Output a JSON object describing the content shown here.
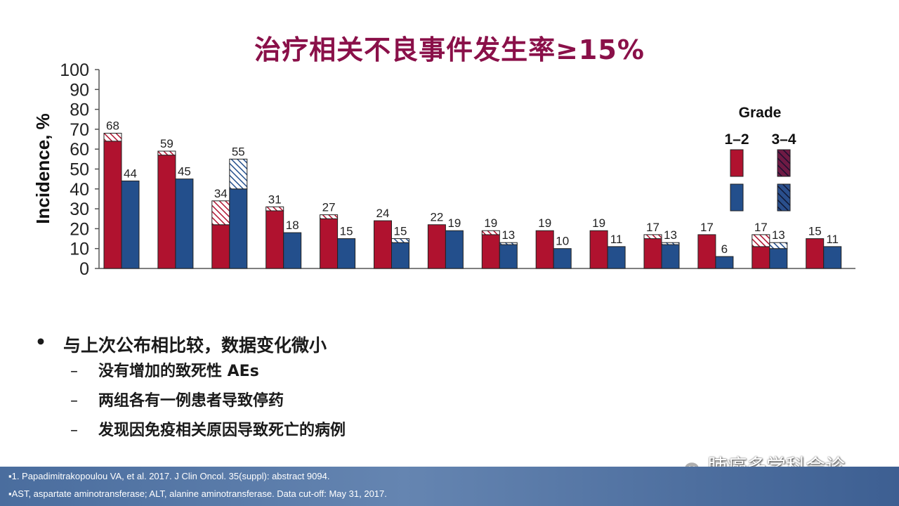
{
  "slide": {
    "title": "治疗相关不良事件发生率≥15%",
    "bullets": [
      {
        "text": "与上次公布相比较，数据变化微小",
        "subs": [
          "没有增加的致死性 AEs",
          "两组各有一例患者导致停药",
          "发现因免疫相关原因导致死亡的病例"
        ]
      }
    ],
    "bullet_marker": "•",
    "sub_marker": "–",
    "footnotes": [
      "▪1. Papadimitrakopoulou VA, et al. 2017. J Clin Oncol. 35(suppl): abstract 9094.",
      "▪AST, aspartate aminotransferase; ALT, alanine aminotransferase. Data cut-off: May 31, 2017."
    ],
    "watermark": "肺癌多学科会诊",
    "colors": {
      "title": "#8a1049",
      "red": "#b0122f",
      "blue": "#234f8c",
      "footer": "#5677a8"
    }
  },
  "chart_data": {
    "type": "bar",
    "stacked": true,
    "ylabel": "Incidence, %",
    "ylim": [
      0,
      100
    ],
    "yticks": [
      0,
      10,
      20,
      30,
      40,
      50,
      60,
      70,
      80,
      90,
      100
    ],
    "legend": {
      "title": "Grade",
      "labels": [
        "1–2",
        "3–4"
      ],
      "position": "top-right"
    },
    "categories": [
      "",
      "",
      "",
      "",
      "",
      "",
      "",
      "",
      "",
      "",
      "",
      "",
      "",
      ""
    ],
    "series": [
      {
        "group": "red",
        "grade12": [
          64,
          57,
          22,
          29,
          25,
          24,
          22,
          17,
          19,
          19,
          15,
          17,
          11,
          15
        ],
        "grade34": [
          4,
          2,
          12,
          2,
          2,
          0,
          0,
          2,
          0,
          0,
          2,
          0,
          6,
          0
        ],
        "total": [
          68,
          59,
          34,
          31,
          27,
          24,
          22,
          19,
          19,
          19,
          17,
          17,
          17,
          15
        ]
      },
      {
        "group": "blue",
        "grade12": [
          44,
          45,
          40,
          18,
          15,
          13,
          19,
          12,
          10,
          11,
          12,
          6,
          10,
          11
        ],
        "grade34": [
          0,
          0,
          15,
          0,
          0,
          2,
          0,
          1,
          0,
          0,
          1,
          0,
          3,
          0
        ],
        "total": [
          44,
          45,
          55,
          18,
          15,
          15,
          19,
          13,
          10,
          11,
          13,
          6,
          13,
          11
        ]
      }
    ]
  }
}
